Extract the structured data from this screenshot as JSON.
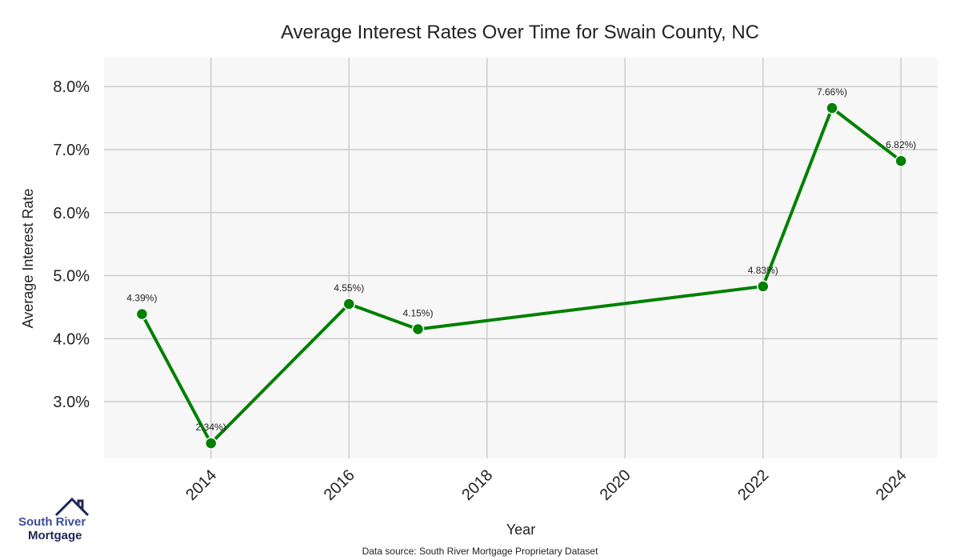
{
  "chart_data": {
    "type": "line",
    "title": "Average Interest Rates Over Time for Swain County, NC",
    "xlabel": "Year",
    "ylabel": "Average Interest Rate",
    "x": [
      2013,
      2014,
      2016,
      2017,
      2022,
      2023,
      2024
    ],
    "series": [
      {
        "name": "Average Interest Rate",
        "values": [
          4.39,
          2.34,
          4.55,
          4.15,
          4.83,
          7.66,
          6.82
        ],
        "color": "#008000"
      }
    ],
    "data_labels": [
      "4.39%)",
      "2.34%)",
      "4.55%)",
      "4.15%)",
      "4.83%)",
      "7.66%)",
      "6.82%)"
    ],
    "xticks": [
      2014,
      2016,
      2018,
      2020,
      2022,
      2024
    ],
    "xtick_labels": [
      "2014",
      "2016",
      "2018",
      "2020",
      "2022",
      "2024"
    ],
    "yticks": [
      3.0,
      4.0,
      5.0,
      6.0,
      7.0,
      8.0
    ],
    "ytick_labels": [
      "3.0%",
      "4.0%",
      "5.0%",
      "6.0%",
      "7.0%",
      "8.0%"
    ],
    "xlim": [
      2012.45,
      2024.53
    ],
    "ylim": [
      2.1,
      8.46
    ],
    "grid": true,
    "background": "#f7f7f7",
    "grid_color": "#cccccc"
  },
  "logo": {
    "line1": "South River",
    "line2": "Mortgage"
  },
  "source": "Data source: South River Mortgage Proprietary Dataset"
}
